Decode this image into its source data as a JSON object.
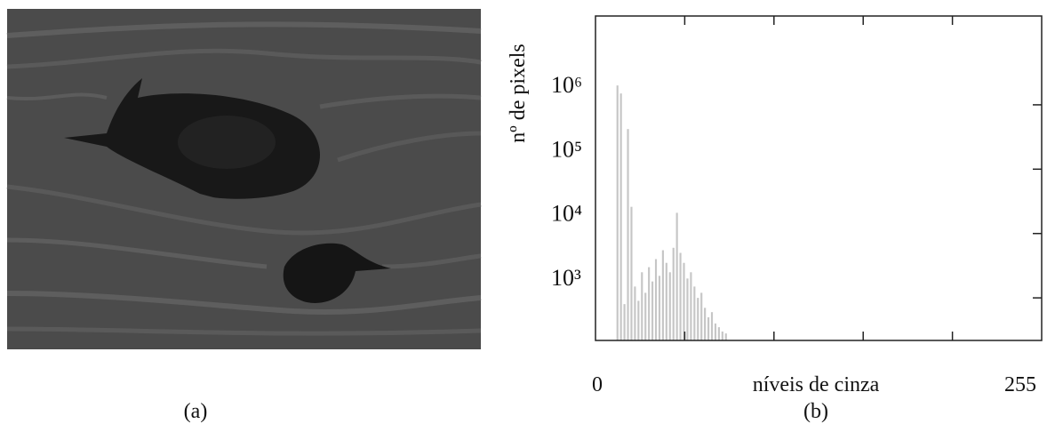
{
  "captions": [
    "(a)",
    "(b)"
  ],
  "chart_data": {
    "type": "histogram",
    "xlabel": "níveis de cinza",
    "ylabel": "nº de pixels",
    "log_y": true,
    "color": "#c6c6c6",
    "bins": [
      12,
      14,
      16,
      18,
      20,
      22,
      24,
      26,
      28,
      30,
      32,
      34,
      36,
      38,
      40,
      42,
      44,
      46,
      48,
      50,
      52,
      54,
      56,
      58,
      60,
      62,
      64,
      66,
      68,
      70,
      72,
      74,
      76
    ],
    "values": [
      2000000,
      1500000,
      800,
      420000,
      26000,
      1500,
      900,
      2500,
      1200,
      3000,
      1800,
      4000,
      2200,
      5500,
      3500,
      2500,
      6000,
      21000,
      5000,
      3500,
      2000,
      2500,
      1500,
      1000,
      1200,
      700,
      500,
      600,
      400,
      350,
      300,
      280
    ],
    "xlim": [
      0,
      255
    ],
    "xticks": [
      0,
      255
    ],
    "minor_xticks": [
      51,
      102,
      153,
      204
    ],
    "ylim": [
      218,
      24000000
    ],
    "yticks": [
      {
        "value": 1000,
        "label": "10³"
      },
      {
        "value": 10000,
        "label": "10⁴"
      },
      {
        "value": 100000,
        "label": "10⁵"
      },
      {
        "value": 1000000,
        "label": "10⁶"
      }
    ]
  }
}
